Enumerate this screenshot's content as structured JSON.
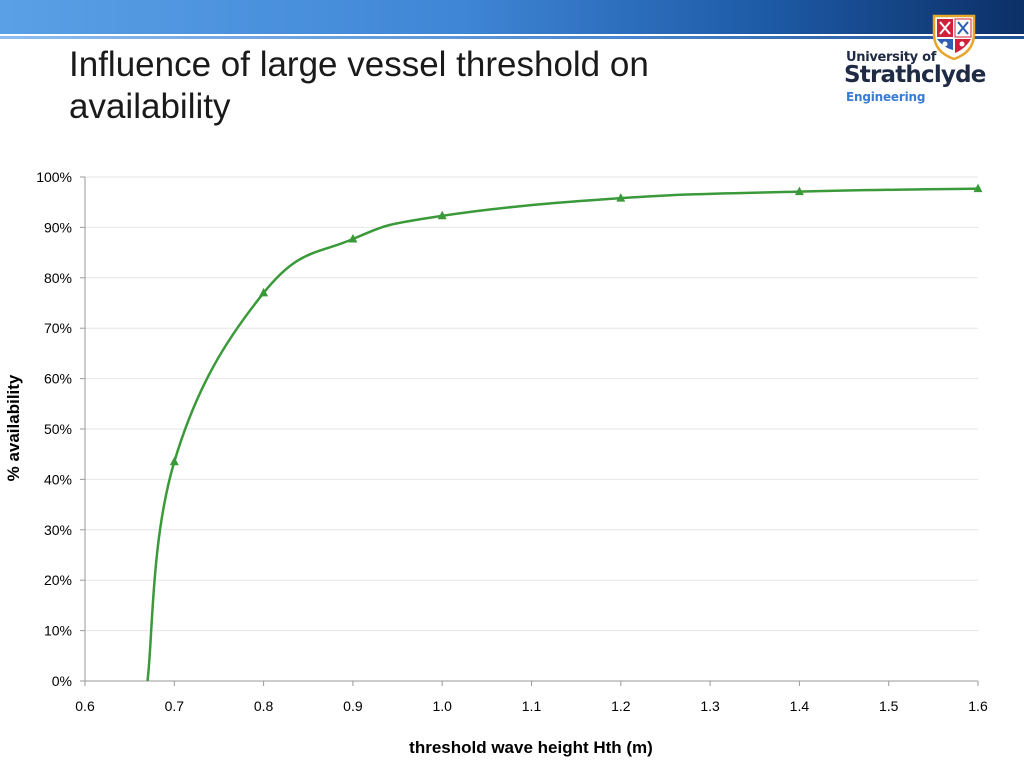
{
  "slide": {
    "title": "Influence of large vessel threshold on availability"
  },
  "logo": {
    "university_of": "University of",
    "name": "Strathclyde",
    "department": "Engineering"
  },
  "colors": {
    "series": "#3a9a3a",
    "gridline": "#e6e6e6",
    "axis": "#9a9a9a"
  },
  "chart_data": {
    "type": "scatter",
    "title": "",
    "xlabel": "threshold wave height Hth (m)",
    "ylabel": "% availability",
    "xlim": [
      0.6,
      1.6
    ],
    "ylim": [
      0,
      100
    ],
    "x_tick_labels": [
      "0.6",
      "0.7",
      "0.8",
      "0.9",
      "1.0",
      "1.1",
      "1.2",
      "1.3",
      "1.4",
      "1.5",
      "1.6"
    ],
    "y_tick_labels": [
      "0%",
      "10%",
      "20%",
      "30%",
      "40%",
      "50%",
      "60%",
      "70%",
      "80%",
      "90%",
      "100%"
    ],
    "grid": "horizontal",
    "legend": "none",
    "series": [
      {
        "marker": "triangle",
        "line": "smoothed",
        "x": [
          0.67,
          0.7,
          0.8,
          0.9,
          1.0,
          1.2,
          1.4,
          1.6
        ],
        "y": [
          0,
          43.5,
          77.0,
          87.7,
          92.3,
          95.8,
          97.1,
          97.7
        ]
      }
    ]
  }
}
